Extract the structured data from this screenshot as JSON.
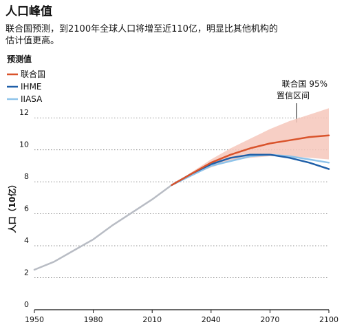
{
  "chart_data": {
    "type": "line",
    "title": "人口峰值",
    "subtitle": [
      "联合国预测，到2100年全球人口将增至近110亿，明显比其他机构的",
      "估计值更高。"
    ],
    "legend_title": "预测值",
    "ylabel": "人口（10亿）",
    "xlim": [
      1950,
      2100
    ],
    "ylim": [
      0,
      13
    ],
    "x_ticks": [
      "1950",
      "1980",
      "2010",
      "2040",
      "2070",
      "2100"
    ],
    "y_ticks": [
      "0",
      "2",
      "4",
      "6",
      "8",
      "10",
      "12"
    ],
    "grid": "horizontal dotted",
    "legend_position": "top-left",
    "colors": {
      "un": "#d9532b",
      "ihme": "#1f5fa8",
      "iiasa": "#8ec3ea",
      "historical": "#b8bcc4",
      "band": "#f6c7bb"
    },
    "historical": {
      "x": [
        1950,
        1960,
        1970,
        1980,
        1990,
        2000,
        2010,
        2020
      ],
      "y": [
        2.5,
        3.0,
        3.7,
        4.4,
        5.3,
        6.1,
        6.9,
        7.8
      ]
    },
    "series": [
      {
        "name": "联合国",
        "key": "un",
        "x": [
          2020,
          2030,
          2040,
          2050,
          2060,
          2070,
          2080,
          2090,
          2100
        ],
        "y": [
          7.8,
          8.5,
          9.2,
          9.7,
          10.1,
          10.4,
          10.6,
          10.8,
          10.9
        ]
      },
      {
        "name": "IHME",
        "key": "ihme",
        "x": [
          2020,
          2030,
          2040,
          2050,
          2060,
          2070,
          2080,
          2090,
          2100
        ],
        "y": [
          7.8,
          8.5,
          9.1,
          9.5,
          9.7,
          9.7,
          9.5,
          9.2,
          8.8
        ]
      },
      {
        "name": "IIASA",
        "key": "iiasa",
        "x": [
          2020,
          2030,
          2040,
          2050,
          2060,
          2070,
          2080,
          2090,
          2100
        ],
        "y": [
          7.8,
          8.4,
          9.0,
          9.3,
          9.6,
          9.7,
          9.6,
          9.4,
          9.2
        ]
      }
    ],
    "un_95_interval": {
      "label": [
        "联合国 95%",
        "置信区间"
      ],
      "x": [
        2020,
        2030,
        2040,
        2050,
        2060,
        2070,
        2080,
        2090,
        2100
      ],
      "lower": [
        7.8,
        8.4,
        8.9,
        9.3,
        9.5,
        9.6,
        9.6,
        9.5,
        9.4
      ],
      "upper": [
        7.8,
        8.6,
        9.4,
        10.1,
        10.7,
        11.3,
        11.8,
        12.2,
        12.6
      ]
    }
  }
}
